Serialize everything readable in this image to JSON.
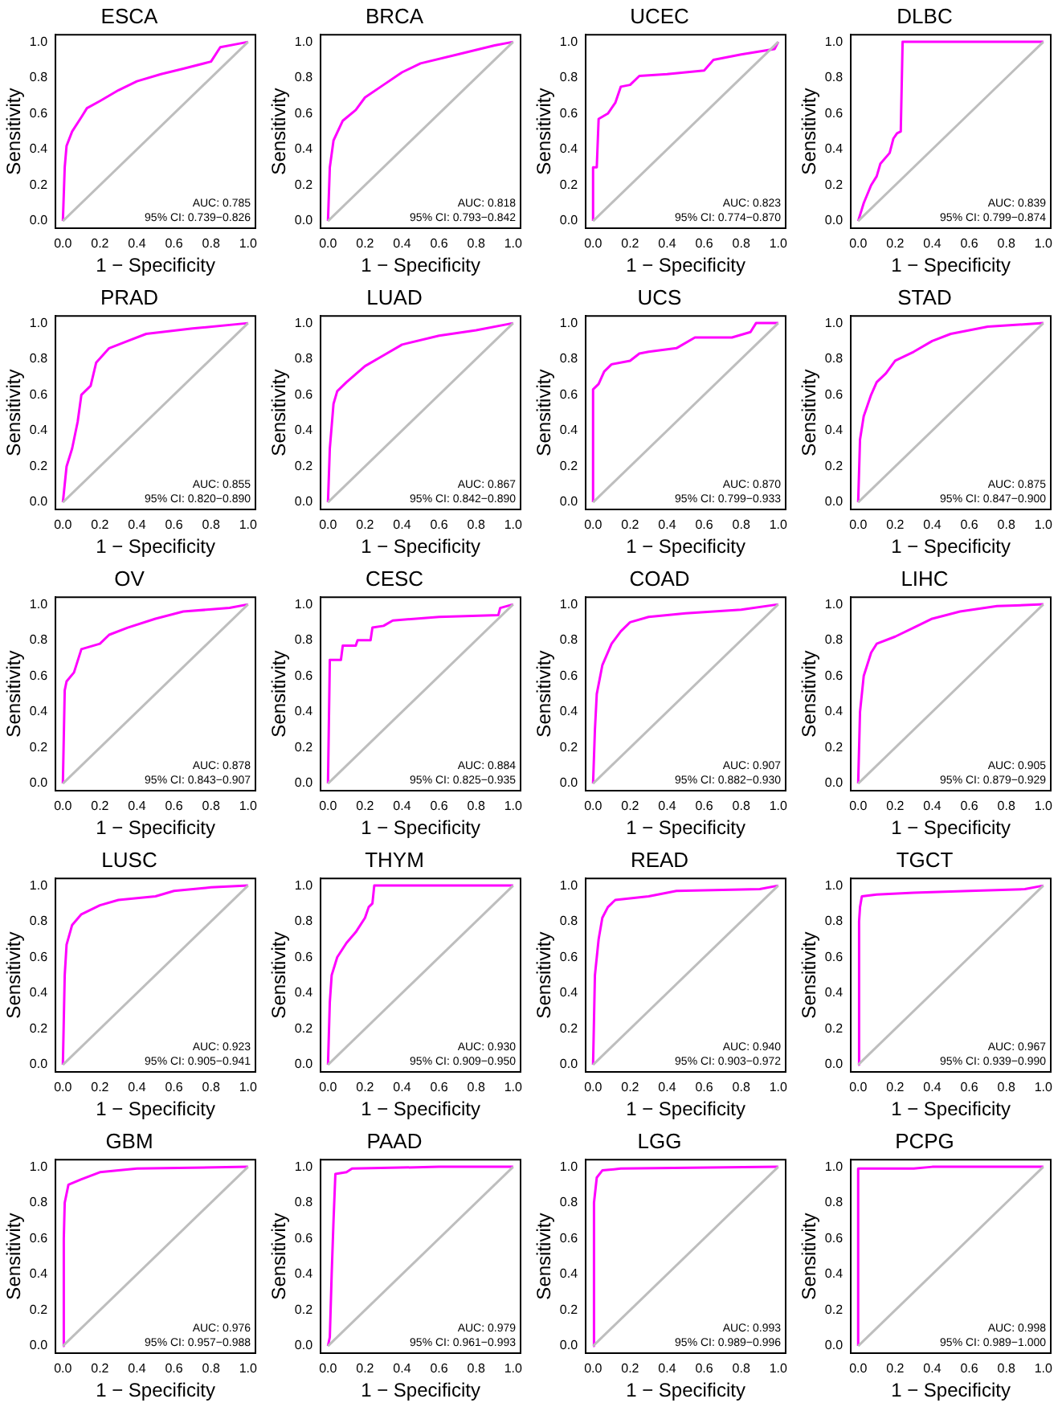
{
  "chart_data": [
    {
      "type": "line",
      "title": "ESCA",
      "xlabel": "1 − Specificity",
      "ylabel": "Sensitivity",
      "xlim": [
        -0.04,
        1.04
      ],
      "ylim": [
        -0.04,
        1.04
      ],
      "xticks": [
        {
          "value": 0,
          "label": "0.0"
        },
        {
          "value": 0.2,
          "label": "0.2"
        },
        {
          "value": 0.4,
          "label": "0.4"
        },
        {
          "value": 0.6,
          "label": "0.6"
        },
        {
          "value": 0.8,
          "label": "0.8"
        },
        {
          "value": 1,
          "label": "1.0"
        }
      ],
      "yticks": [
        {
          "value": 0,
          "label": "0.0"
        },
        {
          "value": 0.2,
          "label": "0.2"
        },
        {
          "value": 0.4,
          "label": "0.4"
        },
        {
          "value": 0.6,
          "label": "0.6"
        },
        {
          "value": 0.8,
          "label": "0.8"
        },
        {
          "value": 1,
          "label": "1.0"
        }
      ],
      "annotations": [
        "AUC: 0.785",
        "95% CI: 0.739−0.826"
      ],
      "series": [
        {
          "color": "#bebebe",
          "x": [
            0,
            1
          ],
          "values": [
            0,
            1
          ]
        },
        {
          "color": "#ff00ff",
          "x": [
            0,
            0.01,
            0.02,
            0.05,
            0.1,
            0.13,
            0.2,
            0.3,
            0.4,
            0.53,
            0.65,
            0.8,
            0.85,
            0.95,
            1
          ],
          "values": [
            0,
            0.3,
            0.42,
            0.5,
            0.58,
            0.63,
            0.67,
            0.73,
            0.78,
            0.82,
            0.85,
            0.89,
            0.97,
            0.99,
            1
          ]
        }
      ]
    },
    {
      "type": "line",
      "title": "BRCA",
      "xlabel": "1 − Specificity",
      "ylabel": "Sensitivity",
      "xlim": [
        -0.04,
        1.04
      ],
      "ylim": [
        -0.04,
        1.04
      ],
      "xticks": [
        {
          "value": 0,
          "label": "0.0"
        },
        {
          "value": 0.2,
          "label": "0.2"
        },
        {
          "value": 0.4,
          "label": "0.4"
        },
        {
          "value": 0.6,
          "label": "0.6"
        },
        {
          "value": 0.8,
          "label": "0.8"
        },
        {
          "value": 1,
          "label": "1.0"
        }
      ],
      "yticks": [
        {
          "value": 0,
          "label": "0.0"
        },
        {
          "value": 0.2,
          "label": "0.2"
        },
        {
          "value": 0.4,
          "label": "0.4"
        },
        {
          "value": 0.6,
          "label": "0.6"
        },
        {
          "value": 0.8,
          "label": "0.8"
        },
        {
          "value": 1,
          "label": "1.0"
        }
      ],
      "annotations": [
        "AUC: 0.818",
        "95% CI: 0.793−0.842"
      ],
      "series": [
        {
          "color": "#bebebe",
          "x": [
            0,
            1
          ],
          "values": [
            0,
            1
          ]
        },
        {
          "color": "#ff00ff",
          "x": [
            0,
            0.01,
            0.03,
            0.08,
            0.15,
            0.2,
            0.3,
            0.4,
            0.5,
            0.7,
            0.9,
            1
          ],
          "values": [
            0,
            0.3,
            0.45,
            0.56,
            0.62,
            0.69,
            0.76,
            0.83,
            0.88,
            0.93,
            0.98,
            1
          ]
        }
      ]
    },
    {
      "type": "line",
      "title": "UCEC",
      "xlabel": "1 − Specificity",
      "ylabel": "Sensitivity",
      "xlim": [
        -0.04,
        1.04
      ],
      "ylim": [
        -0.04,
        1.04
      ],
      "xticks": [
        {
          "value": 0,
          "label": "0.0"
        },
        {
          "value": 0.2,
          "label": "0.2"
        },
        {
          "value": 0.4,
          "label": "0.4"
        },
        {
          "value": 0.6,
          "label": "0.6"
        },
        {
          "value": 0.8,
          "label": "0.8"
        },
        {
          "value": 1,
          "label": "1.0"
        }
      ],
      "yticks": [
        {
          "value": 0,
          "label": "0.0"
        },
        {
          "value": 0.2,
          "label": "0.2"
        },
        {
          "value": 0.4,
          "label": "0.4"
        },
        {
          "value": 0.6,
          "label": "0.6"
        },
        {
          "value": 0.8,
          "label": "0.8"
        },
        {
          "value": 1,
          "label": "1.0"
        }
      ],
      "annotations": [
        "AUC: 0.823",
        "95% CI: 0.774−0.870"
      ],
      "series": [
        {
          "color": "#bebebe",
          "x": [
            0,
            1
          ],
          "values": [
            0,
            1
          ]
        },
        {
          "color": "#ff00ff",
          "x": [
            0,
            0,
            0.02,
            0.03,
            0.08,
            0.12,
            0.15,
            0.2,
            0.25,
            0.4,
            0.6,
            0.65,
            0.8,
            0.98,
            1
          ],
          "values": [
            0,
            0.3,
            0.3,
            0.57,
            0.6,
            0.66,
            0.75,
            0.76,
            0.81,
            0.82,
            0.84,
            0.9,
            0.93,
            0.96,
            1
          ]
        }
      ]
    },
    {
      "type": "line",
      "title": "DLBC",
      "xlabel": "1 − Specificity",
      "ylabel": "Sensitivity",
      "xlim": [
        -0.04,
        1.04
      ],
      "ylim": [
        -0.04,
        1.04
      ],
      "xticks": [
        {
          "value": 0,
          "label": "0.0"
        },
        {
          "value": 0.2,
          "label": "0.2"
        },
        {
          "value": 0.4,
          "label": "0.4"
        },
        {
          "value": 0.6,
          "label": "0.6"
        },
        {
          "value": 0.8,
          "label": "0.8"
        },
        {
          "value": 1,
          "label": "1.0"
        }
      ],
      "yticks": [
        {
          "value": 0,
          "label": "0.0"
        },
        {
          "value": 0.2,
          "label": "0.2"
        },
        {
          "value": 0.4,
          "label": "0.4"
        },
        {
          "value": 0.6,
          "label": "0.6"
        },
        {
          "value": 0.8,
          "label": "0.8"
        },
        {
          "value": 1,
          "label": "1.0"
        }
      ],
      "annotations": [
        "AUC: 0.839",
        "95% CI: 0.799−0.874"
      ],
      "series": [
        {
          "color": "#bebebe",
          "x": [
            0,
            1
          ],
          "values": [
            0,
            1
          ]
        },
        {
          "color": "#ff00ff",
          "x": [
            0,
            0.03,
            0.07,
            0.1,
            0.12,
            0.17,
            0.19,
            0.21,
            0.23,
            0.24,
            1
          ],
          "values": [
            0,
            0.1,
            0.2,
            0.25,
            0.32,
            0.38,
            0.46,
            0.49,
            0.5,
            1,
            1
          ]
        }
      ]
    },
    {
      "type": "line",
      "title": "PRAD",
      "xlabel": "1 − Specificity",
      "ylabel": "Sensitivity",
      "xlim": [
        -0.04,
        1.04
      ],
      "ylim": [
        -0.04,
        1.04
      ],
      "xticks": [
        {
          "value": 0,
          "label": "0.0"
        },
        {
          "value": 0.2,
          "label": "0.2"
        },
        {
          "value": 0.4,
          "label": "0.4"
        },
        {
          "value": 0.6,
          "label": "0.6"
        },
        {
          "value": 0.8,
          "label": "0.8"
        },
        {
          "value": 1,
          "label": "1.0"
        }
      ],
      "yticks": [
        {
          "value": 0,
          "label": "0.0"
        },
        {
          "value": 0.2,
          "label": "0.2"
        },
        {
          "value": 0.4,
          "label": "0.4"
        },
        {
          "value": 0.6,
          "label": "0.6"
        },
        {
          "value": 0.8,
          "label": "0.8"
        },
        {
          "value": 1,
          "label": "1.0"
        }
      ],
      "annotations": [
        "AUC: 0.855",
        "95% CI: 0.820−0.890"
      ],
      "series": [
        {
          "color": "#bebebe",
          "x": [
            0,
            1
          ],
          "values": [
            0,
            1
          ]
        },
        {
          "color": "#ff00ff",
          "x": [
            0,
            0.02,
            0.05,
            0.08,
            0.1,
            0.15,
            0.18,
            0.25,
            0.35,
            0.45,
            0.7,
            1
          ],
          "values": [
            0,
            0.2,
            0.3,
            0.45,
            0.6,
            0.65,
            0.78,
            0.86,
            0.9,
            0.94,
            0.97,
            1
          ]
        }
      ]
    },
    {
      "type": "line",
      "title": "LUAD",
      "xlabel": "1 − Specificity",
      "ylabel": "Sensitivity",
      "xlim": [
        -0.04,
        1.04
      ],
      "ylim": [
        -0.04,
        1.04
      ],
      "xticks": [
        {
          "value": 0,
          "label": "0.0"
        },
        {
          "value": 0.2,
          "label": "0.2"
        },
        {
          "value": 0.4,
          "label": "0.4"
        },
        {
          "value": 0.6,
          "label": "0.6"
        },
        {
          "value": 0.8,
          "label": "0.8"
        },
        {
          "value": 1,
          "label": "1.0"
        }
      ],
      "yticks": [
        {
          "value": 0,
          "label": "0.0"
        },
        {
          "value": 0.2,
          "label": "0.2"
        },
        {
          "value": 0.4,
          "label": "0.4"
        },
        {
          "value": 0.6,
          "label": "0.6"
        },
        {
          "value": 0.8,
          "label": "0.8"
        },
        {
          "value": 1,
          "label": "1.0"
        }
      ],
      "annotations": [
        "AUC: 0.867",
        "95% CI: 0.842−0.890"
      ],
      "series": [
        {
          "color": "#bebebe",
          "x": [
            0,
            1
          ],
          "values": [
            0,
            1
          ]
        },
        {
          "color": "#ff00ff",
          "x": [
            0,
            0.01,
            0.03,
            0.05,
            0.1,
            0.2,
            0.3,
            0.4,
            0.6,
            0.8,
            1
          ],
          "values": [
            0,
            0.3,
            0.55,
            0.62,
            0.67,
            0.76,
            0.82,
            0.88,
            0.93,
            0.96,
            1
          ]
        }
      ]
    },
    {
      "type": "line",
      "title": "UCS",
      "xlabel": "1 − Specificity",
      "ylabel": "Sensitivity",
      "xlim": [
        -0.04,
        1.04
      ],
      "ylim": [
        -0.04,
        1.04
      ],
      "xticks": [
        {
          "value": 0,
          "label": "0.0"
        },
        {
          "value": 0.2,
          "label": "0.2"
        },
        {
          "value": 0.4,
          "label": "0.4"
        },
        {
          "value": 0.6,
          "label": "0.6"
        },
        {
          "value": 0.8,
          "label": "0.8"
        },
        {
          "value": 1,
          "label": "1.0"
        }
      ],
      "yticks": [
        {
          "value": 0,
          "label": "0.0"
        },
        {
          "value": 0.2,
          "label": "0.2"
        },
        {
          "value": 0.4,
          "label": "0.4"
        },
        {
          "value": 0.6,
          "label": "0.6"
        },
        {
          "value": 0.8,
          "label": "0.8"
        },
        {
          "value": 1,
          "label": "1.0"
        }
      ],
      "annotations": [
        "AUC: 0.870",
        "95% CI: 0.799−0.933"
      ],
      "series": [
        {
          "color": "#bebebe",
          "x": [
            0,
            1
          ],
          "values": [
            0,
            1
          ]
        },
        {
          "color": "#ff00ff",
          "x": [
            0,
            0,
            0.03,
            0.06,
            0.1,
            0.2,
            0.25,
            0.3,
            0.45,
            0.55,
            0.75,
            0.85,
            0.88,
            1
          ],
          "values": [
            0,
            0.63,
            0.66,
            0.73,
            0.77,
            0.79,
            0.83,
            0.84,
            0.86,
            0.92,
            0.92,
            0.95,
            1,
            1
          ]
        }
      ]
    },
    {
      "type": "line",
      "title": "STAD",
      "xlabel": "1 − Specificity",
      "ylabel": "Sensitivity",
      "xlim": [
        -0.04,
        1.04
      ],
      "ylim": [
        -0.04,
        1.04
      ],
      "xticks": [
        {
          "value": 0,
          "label": "0.0"
        },
        {
          "value": 0.2,
          "label": "0.2"
        },
        {
          "value": 0.4,
          "label": "0.4"
        },
        {
          "value": 0.6,
          "label": "0.6"
        },
        {
          "value": 0.8,
          "label": "0.8"
        },
        {
          "value": 1,
          "label": "1.0"
        }
      ],
      "yticks": [
        {
          "value": 0,
          "label": "0.0"
        },
        {
          "value": 0.2,
          "label": "0.2"
        },
        {
          "value": 0.4,
          "label": "0.4"
        },
        {
          "value": 0.6,
          "label": "0.6"
        },
        {
          "value": 0.8,
          "label": "0.8"
        },
        {
          "value": 1,
          "label": "1.0"
        }
      ],
      "annotations": [
        "AUC: 0.875",
        "95% CI: 0.847−0.900"
      ],
      "series": [
        {
          "color": "#bebebe",
          "x": [
            0,
            1
          ],
          "values": [
            0,
            1
          ]
        },
        {
          "color": "#ff00ff",
          "x": [
            0,
            0.01,
            0.03,
            0.07,
            0.1,
            0.15,
            0.2,
            0.3,
            0.4,
            0.5,
            0.7,
            1
          ],
          "values": [
            0,
            0.35,
            0.48,
            0.6,
            0.67,
            0.72,
            0.79,
            0.84,
            0.9,
            0.94,
            0.98,
            1
          ]
        }
      ]
    },
    {
      "type": "line",
      "title": "OV",
      "xlabel": "1 − Specificity",
      "ylabel": "Sensitivity",
      "xlim": [
        -0.04,
        1.04
      ],
      "ylim": [
        -0.04,
        1.04
      ],
      "xticks": [
        {
          "value": 0,
          "label": "0.0"
        },
        {
          "value": 0.2,
          "label": "0.2"
        },
        {
          "value": 0.4,
          "label": "0.4"
        },
        {
          "value": 0.6,
          "label": "0.6"
        },
        {
          "value": 0.8,
          "label": "0.8"
        },
        {
          "value": 1,
          "label": "1.0"
        }
      ],
      "yticks": [
        {
          "value": 0,
          "label": "0.0"
        },
        {
          "value": 0.2,
          "label": "0.2"
        },
        {
          "value": 0.4,
          "label": "0.4"
        },
        {
          "value": 0.6,
          "label": "0.6"
        },
        {
          "value": 0.8,
          "label": "0.8"
        },
        {
          "value": 1,
          "label": "1.0"
        }
      ],
      "annotations": [
        "AUC: 0.878",
        "95% CI: 0.843−0.907"
      ],
      "series": [
        {
          "color": "#bebebe",
          "x": [
            0,
            1
          ],
          "values": [
            0,
            1
          ]
        },
        {
          "color": "#ff00ff",
          "x": [
            0,
            0.01,
            0.02,
            0.06,
            0.1,
            0.2,
            0.25,
            0.35,
            0.5,
            0.65,
            0.9,
            1
          ],
          "values": [
            0,
            0.52,
            0.57,
            0.62,
            0.75,
            0.78,
            0.83,
            0.87,
            0.92,
            0.96,
            0.98,
            1
          ]
        }
      ]
    },
    {
      "type": "line",
      "title": "CESC",
      "xlabel": "1 − Specificity",
      "ylabel": "Sensitivity",
      "xlim": [
        -0.04,
        1.04
      ],
      "ylim": [
        -0.04,
        1.04
      ],
      "xticks": [
        {
          "value": 0,
          "label": "0.0"
        },
        {
          "value": 0.2,
          "label": "0.2"
        },
        {
          "value": 0.4,
          "label": "0.4"
        },
        {
          "value": 0.6,
          "label": "0.6"
        },
        {
          "value": 0.8,
          "label": "0.8"
        },
        {
          "value": 1,
          "label": "1.0"
        }
      ],
      "yticks": [
        {
          "value": 0,
          "label": "0.0"
        },
        {
          "value": 0.2,
          "label": "0.2"
        },
        {
          "value": 0.4,
          "label": "0.4"
        },
        {
          "value": 0.6,
          "label": "0.6"
        },
        {
          "value": 0.8,
          "label": "0.8"
        },
        {
          "value": 1,
          "label": "1.0"
        }
      ],
      "annotations": [
        "AUC: 0.884",
        "95% CI: 0.825−0.935"
      ],
      "series": [
        {
          "color": "#bebebe",
          "x": [
            0,
            1
          ],
          "values": [
            0,
            1
          ]
        },
        {
          "color": "#ff00ff",
          "x": [
            0,
            0.01,
            0.07,
            0.08,
            0.15,
            0.16,
            0.23,
            0.24,
            0.3,
            0.35,
            0.6,
            0.92,
            0.93,
            1
          ],
          "values": [
            0,
            0.69,
            0.69,
            0.77,
            0.77,
            0.8,
            0.8,
            0.87,
            0.88,
            0.91,
            0.93,
            0.94,
            0.98,
            1
          ]
        }
      ]
    },
    {
      "type": "line",
      "title": "COAD",
      "xlabel": "1 − Specificity",
      "ylabel": "Sensitivity",
      "xlim": [
        -0.04,
        1.04
      ],
      "ylim": [
        -0.04,
        1.04
      ],
      "xticks": [
        {
          "value": 0,
          "label": "0.0"
        },
        {
          "value": 0.2,
          "label": "0.2"
        },
        {
          "value": 0.4,
          "label": "0.4"
        },
        {
          "value": 0.6,
          "label": "0.6"
        },
        {
          "value": 0.8,
          "label": "0.8"
        },
        {
          "value": 1,
          "label": "1.0"
        }
      ],
      "yticks": [
        {
          "value": 0,
          "label": "0.0"
        },
        {
          "value": 0.2,
          "label": "0.2"
        },
        {
          "value": 0.4,
          "label": "0.4"
        },
        {
          "value": 0.6,
          "label": "0.6"
        },
        {
          "value": 0.8,
          "label": "0.8"
        },
        {
          "value": 1,
          "label": "1.0"
        }
      ],
      "annotations": [
        "AUC: 0.907",
        "95% CI: 0.882−0.930"
      ],
      "series": [
        {
          "color": "#bebebe",
          "x": [
            0,
            1
          ],
          "values": [
            0,
            1
          ]
        },
        {
          "color": "#ff00ff",
          "x": [
            0,
            0.01,
            0.02,
            0.05,
            0.1,
            0.15,
            0.2,
            0.3,
            0.5,
            0.8,
            1
          ],
          "values": [
            0,
            0.3,
            0.5,
            0.66,
            0.78,
            0.85,
            0.9,
            0.93,
            0.95,
            0.97,
            1
          ]
        }
      ]
    },
    {
      "type": "line",
      "title": "LIHC",
      "xlabel": "1 − Specificity",
      "ylabel": "Sensitivity",
      "xlim": [
        -0.04,
        1.04
      ],
      "ylim": [
        -0.04,
        1.04
      ],
      "xticks": [
        {
          "value": 0,
          "label": "0.0"
        },
        {
          "value": 0.2,
          "label": "0.2"
        },
        {
          "value": 0.4,
          "label": "0.4"
        },
        {
          "value": 0.6,
          "label": "0.6"
        },
        {
          "value": 0.8,
          "label": "0.8"
        },
        {
          "value": 1,
          "label": "1.0"
        }
      ],
      "yticks": [
        {
          "value": 0,
          "label": "0.0"
        },
        {
          "value": 0.2,
          "label": "0.2"
        },
        {
          "value": 0.4,
          "label": "0.4"
        },
        {
          "value": 0.6,
          "label": "0.6"
        },
        {
          "value": 0.8,
          "label": "0.8"
        },
        {
          "value": 1,
          "label": "1.0"
        }
      ],
      "annotations": [
        "AUC: 0.905",
        "95% CI: 0.879−0.929"
      ],
      "series": [
        {
          "color": "#bebebe",
          "x": [
            0,
            1
          ],
          "values": [
            0,
            1
          ]
        },
        {
          "color": "#ff00ff",
          "x": [
            0,
            0.01,
            0.03,
            0.07,
            0.1,
            0.2,
            0.3,
            0.4,
            0.55,
            0.75,
            1
          ],
          "values": [
            0,
            0.4,
            0.6,
            0.73,
            0.78,
            0.82,
            0.87,
            0.92,
            0.96,
            0.99,
            1
          ]
        }
      ]
    },
    {
      "type": "line",
      "title": "LUSC",
      "xlabel": "1 − Specificity",
      "ylabel": "Sensitivity",
      "xlim": [
        -0.04,
        1.04
      ],
      "ylim": [
        -0.04,
        1.04
      ],
      "xticks": [
        {
          "value": 0,
          "label": "0.0"
        },
        {
          "value": 0.2,
          "label": "0.2"
        },
        {
          "value": 0.4,
          "label": "0.4"
        },
        {
          "value": 0.6,
          "label": "0.6"
        },
        {
          "value": 0.8,
          "label": "0.8"
        },
        {
          "value": 1,
          "label": "1.0"
        }
      ],
      "yticks": [
        {
          "value": 0,
          "label": "0.0"
        },
        {
          "value": 0.2,
          "label": "0.2"
        },
        {
          "value": 0.4,
          "label": "0.4"
        },
        {
          "value": 0.6,
          "label": "0.6"
        },
        {
          "value": 0.8,
          "label": "0.8"
        },
        {
          "value": 1,
          "label": "1.0"
        }
      ],
      "annotations": [
        "AUC: 0.923",
        "95% CI: 0.905−0.941"
      ],
      "series": [
        {
          "color": "#bebebe",
          "x": [
            0,
            1
          ],
          "values": [
            0,
            1
          ]
        },
        {
          "color": "#ff00ff",
          "x": [
            0,
            0.01,
            0.02,
            0.05,
            0.1,
            0.2,
            0.3,
            0.5,
            0.6,
            0.8,
            1
          ],
          "values": [
            0,
            0.5,
            0.67,
            0.78,
            0.84,
            0.89,
            0.92,
            0.94,
            0.97,
            0.99,
            1
          ]
        }
      ]
    },
    {
      "type": "line",
      "title": "THYM",
      "xlabel": "1 − Specificity",
      "ylabel": "Sensitivity",
      "xlim": [
        -0.04,
        1.04
      ],
      "ylim": [
        -0.04,
        1.04
      ],
      "xticks": [
        {
          "value": 0,
          "label": "0.0"
        },
        {
          "value": 0.2,
          "label": "0.2"
        },
        {
          "value": 0.4,
          "label": "0.4"
        },
        {
          "value": 0.6,
          "label": "0.6"
        },
        {
          "value": 0.8,
          "label": "0.8"
        },
        {
          "value": 1,
          "label": "1.0"
        }
      ],
      "yticks": [
        {
          "value": 0,
          "label": "0.0"
        },
        {
          "value": 0.2,
          "label": "0.2"
        },
        {
          "value": 0.4,
          "label": "0.4"
        },
        {
          "value": 0.6,
          "label": "0.6"
        },
        {
          "value": 0.8,
          "label": "0.8"
        },
        {
          "value": 1,
          "label": "1.0"
        }
      ],
      "annotations": [
        "AUC: 0.930",
        "95% CI: 0.909−0.950"
      ],
      "series": [
        {
          "color": "#bebebe",
          "x": [
            0,
            1
          ],
          "values": [
            0,
            1
          ]
        },
        {
          "color": "#ff00ff",
          "x": [
            0,
            0.01,
            0.02,
            0.05,
            0.1,
            0.15,
            0.2,
            0.22,
            0.24,
            0.25,
            1
          ],
          "values": [
            0,
            0.35,
            0.5,
            0.6,
            0.68,
            0.74,
            0.82,
            0.88,
            0.9,
            1,
            1
          ]
        }
      ]
    },
    {
      "type": "line",
      "title": "READ",
      "xlabel": "1 − Specificity",
      "ylabel": "Sensitivity",
      "xlim": [
        -0.04,
        1.04
      ],
      "ylim": [
        -0.04,
        1.04
      ],
      "xticks": [
        {
          "value": 0,
          "label": "0.0"
        },
        {
          "value": 0.2,
          "label": "0.2"
        },
        {
          "value": 0.4,
          "label": "0.4"
        },
        {
          "value": 0.6,
          "label": "0.6"
        },
        {
          "value": 0.8,
          "label": "0.8"
        },
        {
          "value": 1,
          "label": "1.0"
        }
      ],
      "yticks": [
        {
          "value": 0,
          "label": "0.0"
        },
        {
          "value": 0.2,
          "label": "0.2"
        },
        {
          "value": 0.4,
          "label": "0.4"
        },
        {
          "value": 0.6,
          "label": "0.6"
        },
        {
          "value": 0.8,
          "label": "0.8"
        },
        {
          "value": 1,
          "label": "1.0"
        }
      ],
      "annotations": [
        "AUC: 0.940",
        "95% CI: 0.903−0.972"
      ],
      "series": [
        {
          "color": "#bebebe",
          "x": [
            0,
            1
          ],
          "values": [
            0,
            1
          ]
        },
        {
          "color": "#ff00ff",
          "x": [
            0,
            0.01,
            0.03,
            0.05,
            0.08,
            0.12,
            0.3,
            0.45,
            0.9,
            1
          ],
          "values": [
            0,
            0.5,
            0.7,
            0.82,
            0.88,
            0.92,
            0.94,
            0.97,
            0.98,
            1
          ]
        }
      ]
    },
    {
      "type": "line",
      "title": "TGCT",
      "xlabel": "1 − Specificity",
      "ylabel": "Sensitivity",
      "xlim": [
        -0.04,
        1.04
      ],
      "ylim": [
        -0.04,
        1.04
      ],
      "xticks": [
        {
          "value": 0,
          "label": "0.0"
        },
        {
          "value": 0.2,
          "label": "0.2"
        },
        {
          "value": 0.4,
          "label": "0.4"
        },
        {
          "value": 0.6,
          "label": "0.6"
        },
        {
          "value": 0.8,
          "label": "0.8"
        },
        {
          "value": 1,
          "label": "1.0"
        }
      ],
      "yticks": [
        {
          "value": 0,
          "label": "0.0"
        },
        {
          "value": 0.2,
          "label": "0.2"
        },
        {
          "value": 0.4,
          "label": "0.4"
        },
        {
          "value": 0.6,
          "label": "0.6"
        },
        {
          "value": 0.8,
          "label": "0.8"
        },
        {
          "value": 1,
          "label": "1.0"
        }
      ],
      "annotations": [
        "AUC: 0.967",
        "95% CI: 0.939−0.990"
      ],
      "series": [
        {
          "color": "#bebebe",
          "x": [
            0,
            1
          ],
          "values": [
            0,
            1
          ]
        },
        {
          "color": "#ff00ff",
          "x": [
            0,
            0.005,
            0.01,
            0.02,
            0.1,
            0.3,
            0.6,
            0.9,
            1
          ],
          "values": [
            0,
            0.8,
            0.88,
            0.94,
            0.95,
            0.96,
            0.97,
            0.98,
            1
          ]
        }
      ]
    },
    {
      "type": "line",
      "title": "GBM",
      "xlabel": "1 − Specificity",
      "ylabel": "Sensitivity",
      "xlim": [
        -0.04,
        1.04
      ],
      "ylim": [
        -0.04,
        1.04
      ],
      "xticks": [
        {
          "value": 0,
          "label": "0.0"
        },
        {
          "value": 0.2,
          "label": "0.2"
        },
        {
          "value": 0.4,
          "label": "0.4"
        },
        {
          "value": 0.6,
          "label": "0.6"
        },
        {
          "value": 0.8,
          "label": "0.8"
        },
        {
          "value": 1,
          "label": "1.0"
        }
      ],
      "yticks": [
        {
          "value": 0,
          "label": "0.0"
        },
        {
          "value": 0.2,
          "label": "0.2"
        },
        {
          "value": 0.4,
          "label": "0.4"
        },
        {
          "value": 0.6,
          "label": "0.6"
        },
        {
          "value": 0.8,
          "label": "0.8"
        },
        {
          "value": 1,
          "label": "1.0"
        }
      ],
      "annotations": [
        "AUC: 0.976",
        "95% CI: 0.957−0.988"
      ],
      "series": [
        {
          "color": "#bebebe",
          "x": [
            0,
            1
          ],
          "values": [
            0,
            1
          ]
        },
        {
          "color": "#ff00ff",
          "x": [
            0,
            0.005,
            0.01,
            0.03,
            0.1,
            0.2,
            0.4,
            1
          ],
          "values": [
            0,
            0.6,
            0.8,
            0.9,
            0.93,
            0.97,
            0.99,
            1
          ]
        }
      ]
    },
    {
      "type": "line",
      "title": "PAAD",
      "xlabel": "1 − Specificity",
      "ylabel": "Sensitivity",
      "xlim": [
        -0.04,
        1.04
      ],
      "ylim": [
        -0.04,
        1.04
      ],
      "xticks": [
        {
          "value": 0,
          "label": "0.0"
        },
        {
          "value": 0.2,
          "label": "0.2"
        },
        {
          "value": 0.4,
          "label": "0.4"
        },
        {
          "value": 0.6,
          "label": "0.6"
        },
        {
          "value": 0.8,
          "label": "0.8"
        },
        {
          "value": 1,
          "label": "1.0"
        }
      ],
      "yticks": [
        {
          "value": 0,
          "label": "0.0"
        },
        {
          "value": 0.2,
          "label": "0.2"
        },
        {
          "value": 0.4,
          "label": "0.4"
        },
        {
          "value": 0.6,
          "label": "0.6"
        },
        {
          "value": 0.8,
          "label": "0.8"
        },
        {
          "value": 1,
          "label": "1.0"
        }
      ],
      "annotations": [
        "AUC: 0.979",
        "95% CI: 0.961−0.993"
      ],
      "series": [
        {
          "color": "#bebebe",
          "x": [
            0,
            1
          ],
          "values": [
            0,
            1
          ]
        },
        {
          "color": "#ff00ff",
          "x": [
            0,
            0.01,
            0.02,
            0.03,
            0.04,
            0.1,
            0.13,
            0.6,
            1
          ],
          "values": [
            0,
            0.05,
            0.4,
            0.7,
            0.96,
            0.97,
            0.99,
            1,
            1
          ]
        }
      ]
    },
    {
      "type": "line",
      "title": "LGG",
      "xlabel": "1 − Specificity",
      "ylabel": "Sensitivity",
      "xlim": [
        -0.04,
        1.04
      ],
      "ylim": [
        -0.04,
        1.04
      ],
      "xticks": [
        {
          "value": 0,
          "label": "0.0"
        },
        {
          "value": 0.2,
          "label": "0.2"
        },
        {
          "value": 0.4,
          "label": "0.4"
        },
        {
          "value": 0.6,
          "label": "0.6"
        },
        {
          "value": 0.8,
          "label": "0.8"
        },
        {
          "value": 1,
          "label": "1.0"
        }
      ],
      "yticks": [
        {
          "value": 0,
          "label": "0.0"
        },
        {
          "value": 0.2,
          "label": "0.2"
        },
        {
          "value": 0.4,
          "label": "0.4"
        },
        {
          "value": 0.6,
          "label": "0.6"
        },
        {
          "value": 0.8,
          "label": "0.8"
        },
        {
          "value": 1,
          "label": "1.0"
        }
      ],
      "annotations": [
        "AUC: 0.993",
        "95% CI: 0.989−0.996"
      ],
      "series": [
        {
          "color": "#bebebe",
          "x": [
            0,
            1
          ],
          "values": [
            0,
            1
          ]
        },
        {
          "color": "#ff00ff",
          "x": [
            0,
            0.005,
            0.02,
            0.05,
            0.15,
            1
          ],
          "values": [
            0,
            0.8,
            0.94,
            0.98,
            0.99,
            1
          ]
        }
      ]
    },
    {
      "type": "line",
      "title": "PCPG",
      "xlabel": "1 − Specificity",
      "ylabel": "Sensitivity",
      "xlim": [
        -0.04,
        1.04
      ],
      "ylim": [
        -0.04,
        1.04
      ],
      "xticks": [
        {
          "value": 0,
          "label": "0.0"
        },
        {
          "value": 0.2,
          "label": "0.2"
        },
        {
          "value": 0.4,
          "label": "0.4"
        },
        {
          "value": 0.6,
          "label": "0.6"
        },
        {
          "value": 0.8,
          "label": "0.8"
        },
        {
          "value": 1,
          "label": "1.0"
        }
      ],
      "yticks": [
        {
          "value": 0,
          "label": "0.0"
        },
        {
          "value": 0.2,
          "label": "0.2"
        },
        {
          "value": 0.4,
          "label": "0.4"
        },
        {
          "value": 0.6,
          "label": "0.6"
        },
        {
          "value": 0.8,
          "label": "0.8"
        },
        {
          "value": 1,
          "label": "1.0"
        }
      ],
      "annotations": [
        "AUC: 0.998",
        "95% CI: 0.989−1.000"
      ],
      "series": [
        {
          "color": "#bebebe",
          "x": [
            0,
            1
          ],
          "values": [
            0,
            1
          ]
        },
        {
          "color": "#ff00ff",
          "x": [
            0,
            0,
            0.3,
            0.4,
            1
          ],
          "values": [
            0,
            0.99,
            0.99,
            1,
            1
          ]
        }
      ]
    }
  ]
}
